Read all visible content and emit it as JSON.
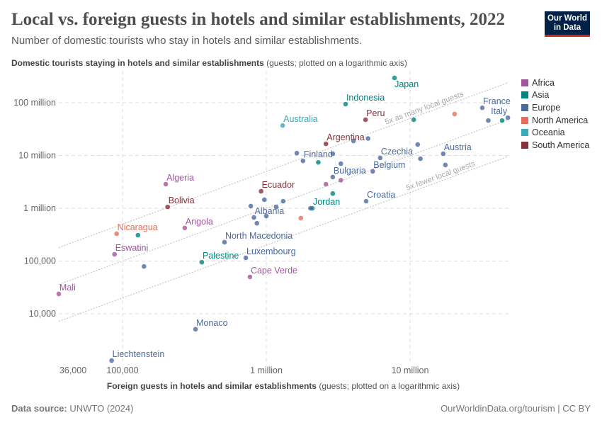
{
  "header": {
    "title": "Local vs. foreign guests in hotels and similar establishments, 2022",
    "subtitle": "Number of domestic tourists who stay in hotels and similar establishments.",
    "logo_line1": "Our World",
    "logo_line2": "in Data"
  },
  "footer": {
    "source_label": "Data source:",
    "source": "UNWTO (2024)",
    "credit": "OurWorldinData.org/tourism | CC BY"
  },
  "chart_data": {
    "type": "scatter",
    "title": "Local vs. foreign guests in hotels and similar establishments, 2022",
    "xlabel_bold": "Foreign guests in hotels and similar establishments",
    "xlabel_note": "(guests; plotted on a logarithmic axis)",
    "ylabel_bold": "Domestic tourists staying in hotels and similar establishments",
    "ylabel_note": "(guests; plotted on a logarithmic axis)",
    "x_scale": "log",
    "y_scale": "log",
    "xlim": [
      36000,
      48000000
    ],
    "ylim": [
      1200,
      300000000
    ],
    "x_ticks": [
      {
        "value": 36000,
        "label": "36,000"
      },
      {
        "value": 100000,
        "label": "100,000"
      },
      {
        "value": 1000000,
        "label": "1 million"
      },
      {
        "value": 10000000,
        "label": "10 million"
      }
    ],
    "y_ticks": [
      {
        "value": 10000,
        "label": "10,000"
      },
      {
        "value": 100000,
        "label": "100,000"
      },
      {
        "value": 1000000,
        "label": "1 million"
      },
      {
        "value": 10000000,
        "label": "10 million"
      },
      {
        "value": 100000000,
        "label": "100 million"
      }
    ],
    "grid": true,
    "legend_position": "right",
    "regions": [
      {
        "name": "Africa",
        "color": "#a2559c"
      },
      {
        "name": "Asia",
        "color": "#00847e"
      },
      {
        "name": "Europe",
        "color": "#4c6a9c"
      },
      {
        "name": "North America",
        "color": "#e56e5a"
      },
      {
        "name": "Oceania",
        "color": "#38aaba"
      },
      {
        "name": "South America",
        "color": "#883039"
      }
    ],
    "reference_lines": [
      {
        "ratio": 5,
        "label": "5x as many local guests"
      },
      {
        "ratio": 1,
        "label": ""
      },
      {
        "ratio": 0.2,
        "label": "5x fewer local guests"
      }
    ],
    "points": [
      {
        "label": "Japan",
        "region": "Asia",
        "x": 7800000,
        "y": 295000000
      },
      {
        "label": "Indonesia",
        "region": "Asia",
        "x": 3560000,
        "y": 94000000
      },
      {
        "label": "Peru",
        "region": "South America",
        "x": 4900000,
        "y": 47600000
      },
      {
        "label": "Australia",
        "region": "Oceania",
        "x": 1300000,
        "y": 37000000
      },
      {
        "label": "Argentina",
        "region": "South America",
        "x": 2600000,
        "y": 16600000
      },
      {
        "label": "France",
        "region": "Europe",
        "x": 31800000,
        "y": 80000000
      },
      {
        "label": "Italy",
        "region": "Europe",
        "x": 47900000,
        "y": 52000000
      },
      {
        "label": "Finland",
        "region": "Europe",
        "x": 1800000,
        "y": 7900000
      },
      {
        "label": "Czechia",
        "region": "Europe",
        "x": 6200000,
        "y": 9000000
      },
      {
        "label": "Austria",
        "region": "Europe",
        "x": 17000000,
        "y": 10800000
      },
      {
        "label": "Belgium",
        "region": "Europe",
        "x": 5500000,
        "y": 5000000
      },
      {
        "label": "Bulgaria",
        "region": "Europe",
        "x": 2900000,
        "y": 3900000
      },
      {
        "label": "Algeria",
        "region": "Africa",
        "x": 200000,
        "y": 2860000
      },
      {
        "label": "Ecuador",
        "region": "South America",
        "x": 920000,
        "y": 2100000
      },
      {
        "label": "Bolivia",
        "region": "South America",
        "x": 206000,
        "y": 1060000
      },
      {
        "label": "Croatia",
        "region": "Europe",
        "x": 4950000,
        "y": 1360000
      },
      {
        "label": "Jordan",
        "region": "Asia",
        "x": 2090000,
        "y": 1000000
      },
      {
        "label": "Albania",
        "region": "Europe",
        "x": 820000,
        "y": 670000
      },
      {
        "label": "Angola",
        "region": "Africa",
        "x": 271000,
        "y": 423000
      },
      {
        "label": "Nicaragua",
        "region": "North America",
        "x": 91000,
        "y": 329000
      },
      {
        "label": "North Macedonia",
        "region": "Europe",
        "x": 512000,
        "y": 227000
      },
      {
        "label": "Eswatini",
        "region": "Africa",
        "x": 88000,
        "y": 134000
      },
      {
        "label": "Palestine",
        "region": "Asia",
        "x": 356000,
        "y": 95000
      },
      {
        "label": "Luxembourg",
        "region": "Europe",
        "x": 720000,
        "y": 115000
      },
      {
        "label": "Cape Verde",
        "region": "Africa",
        "x": 770000,
        "y": 50000
      },
      {
        "label": "Mali",
        "region": "Africa",
        "x": 36000,
        "y": 23800
      },
      {
        "label": "Monaco",
        "region": "Europe",
        "x": 322000,
        "y": 5100
      },
      {
        "label": "Liechtenstein",
        "region": "Europe",
        "x": 84000,
        "y": 1300
      },
      {
        "region": "Asia",
        "x": 10600000,
        "y": 47600000
      },
      {
        "region": "North America",
        "x": 20400000,
        "y": 61000000
      },
      {
        "region": "Europe",
        "x": 35000000,
        "y": 46000000
      },
      {
        "region": "Asia",
        "x": 43700000,
        "y": 46000000
      },
      {
        "region": "Europe",
        "x": 5100000,
        "y": 21000000
      },
      {
        "region": "Europe",
        "x": 4040000,
        "y": 18900000
      },
      {
        "region": "Europe",
        "x": 1630000,
        "y": 11100000
      },
      {
        "region": "Europe",
        "x": 2900000,
        "y": 10800000
      },
      {
        "region": "Asia",
        "x": 2300000,
        "y": 7400000
      },
      {
        "region": "Europe",
        "x": 3300000,
        "y": 7000000
      },
      {
        "region": "Europe",
        "x": 11300000,
        "y": 16100000
      },
      {
        "region": "Europe",
        "x": 11800000,
        "y": 8700000
      },
      {
        "region": "Europe",
        "x": 17600000,
        "y": 6600000
      },
      {
        "region": "Africa",
        "x": 3300000,
        "y": 3400000
      },
      {
        "region": "Africa",
        "x": 2600000,
        "y": 2860000
      },
      {
        "region": "Asia",
        "x": 2900000,
        "y": 1900000
      },
      {
        "region": "Europe",
        "x": 780000,
        "y": 1100000
      },
      {
        "region": "Europe",
        "x": 970000,
        "y": 1450000
      },
      {
        "region": "Europe",
        "x": 1310000,
        "y": 1360000
      },
      {
        "region": "Europe",
        "x": 1170000,
        "y": 1060000
      },
      {
        "region": "Europe",
        "x": 2030000,
        "y": 1000000
      },
      {
        "region": "Europe",
        "x": 1000000,
        "y": 710000
      },
      {
        "region": "Europe",
        "x": 860000,
        "y": 520000
      },
      {
        "region": "North America",
        "x": 1740000,
        "y": 650000
      },
      {
        "region": "Asia",
        "x": 128000,
        "y": 309000
      },
      {
        "region": "Europe",
        "x": 141000,
        "y": 79000
      }
    ]
  }
}
